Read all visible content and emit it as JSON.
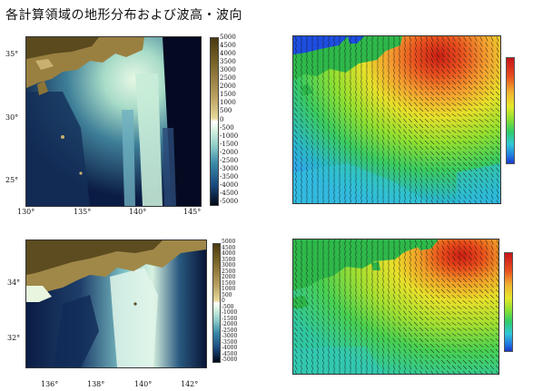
{
  "title": "各計算領域の地形分布および波高・波向",
  "panel_top_left": {
    "lat_ticks": [
      "35°",
      "30°",
      "25°"
    ],
    "lon_ticks": [
      "130°",
      "135°",
      "140°",
      "145°"
    ],
    "colorbar_labels": [
      "5000",
      "4500",
      "4000",
      "3500",
      "3000",
      "2500",
      "2000",
      "1500",
      "1000",
      "500",
      "0",
      "-500",
      "-1000",
      "-1500",
      "-2000",
      "-2500",
      "-3000",
      "-3500",
      "-4000",
      "-4500",
      "-5000"
    ]
  },
  "panel_bottom_left": {
    "lat_ticks": [
      "34°",
      "32°"
    ],
    "lon_ticks": [
      "136°",
      "138°",
      "140°",
      "142°"
    ],
    "colorbar_labels": [
      "5000",
      "4500",
      "4000",
      "3500",
      "3000",
      "2500",
      "2000",
      "1500",
      "1000",
      "500",
      "0",
      "-500",
      "-1000",
      "-1500",
      "-2000",
      "-2500",
      "-3000",
      "-3500",
      "-4000",
      "-4500",
      "-5000"
    ]
  },
  "colors": {
    "land_high": "#5a4a1e",
    "land_low": "#c8b070",
    "shallow": "#d8f2e0",
    "mid": "#5aa8b8",
    "deep": "#0a1a40",
    "wave_land": "#2eb84a",
    "wave_hot": "#d82a1a"
  }
}
